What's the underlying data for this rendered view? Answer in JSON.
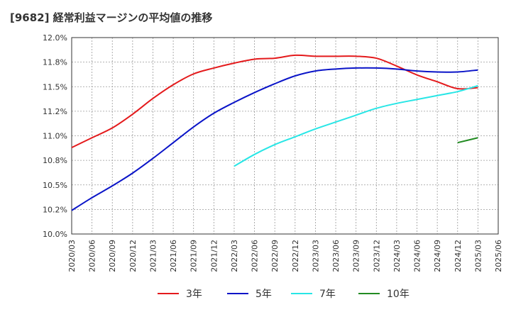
{
  "chart_data": {
    "type": "line",
    "title": "[9682]  経常利益マージンの平均値の推移",
    "xlabel": "",
    "ylabel": "",
    "ylim": [
      10.0,
      12.0
    ],
    "y_ticks": [
      "10.0%",
      "10.2%",
      "10.5%",
      "10.8%",
      "11.0%",
      "11.2%",
      "11.5%",
      "11.8%",
      "12.0%"
    ],
    "x_ticks": [
      "2020/03",
      "2020/06",
      "2020/09",
      "2020/12",
      "2021/03",
      "2021/06",
      "2021/09",
      "2021/12",
      "2022/03",
      "2022/06",
      "2022/09",
      "2022/12",
      "2023/03",
      "2023/06",
      "2023/09",
      "2023/12",
      "2024/03",
      "2024/06",
      "2024/09",
      "2024/12",
      "2025/03",
      "2025/06"
    ],
    "grid": true,
    "legend_position": "bottom",
    "series": [
      {
        "name": "3年",
        "color": "#e41a1c",
        "x": [
          "2020/03",
          "2020/06",
          "2020/09",
          "2020/12",
          "2021/03",
          "2021/06",
          "2021/09",
          "2021/12",
          "2022/03",
          "2022/06",
          "2022/09",
          "2022/12",
          "2023/03",
          "2023/06",
          "2023/09",
          "2023/12",
          "2024/03",
          "2024/06",
          "2024/09",
          "2024/12",
          "2025/03"
        ],
        "values": [
          10.88,
          10.98,
          11.08,
          11.22,
          11.38,
          11.52,
          11.63,
          11.69,
          11.74,
          11.78,
          11.79,
          11.82,
          11.81,
          11.81,
          11.81,
          11.79,
          11.71,
          11.62,
          11.55,
          11.48,
          11.49
        ]
      },
      {
        "name": "5年",
        "color": "#0a14c8",
        "x": [
          "2020/03",
          "2020/06",
          "2020/09",
          "2020/12",
          "2021/03",
          "2021/06",
          "2021/09",
          "2021/12",
          "2022/03",
          "2022/06",
          "2022/09",
          "2022/12",
          "2023/03",
          "2023/06",
          "2023/09",
          "2023/12",
          "2024/03",
          "2024/06",
          "2024/09",
          "2024/12",
          "2025/03"
        ],
        "values": [
          10.24,
          10.37,
          10.49,
          10.62,
          10.77,
          10.93,
          11.09,
          11.23,
          11.34,
          11.44,
          11.53,
          11.61,
          11.66,
          11.68,
          11.69,
          11.69,
          11.68,
          11.66,
          11.65,
          11.65,
          11.67
        ]
      },
      {
        "name": "7年",
        "color": "#28e6e6",
        "x": [
          "2022/03",
          "2022/06",
          "2022/09",
          "2022/12",
          "2023/03",
          "2023/06",
          "2023/09",
          "2023/12",
          "2024/03",
          "2024/06",
          "2024/09",
          "2024/12",
          "2025/03"
        ],
        "values": [
          10.69,
          10.81,
          10.91,
          10.99,
          11.07,
          11.14,
          11.21,
          11.28,
          11.33,
          11.37,
          11.41,
          11.45,
          11.51
        ]
      },
      {
        "name": "10年",
        "color": "#228b22",
        "x": [
          "2024/12",
          "2025/03"
        ],
        "values": [
          10.93,
          10.98
        ]
      }
    ]
  }
}
